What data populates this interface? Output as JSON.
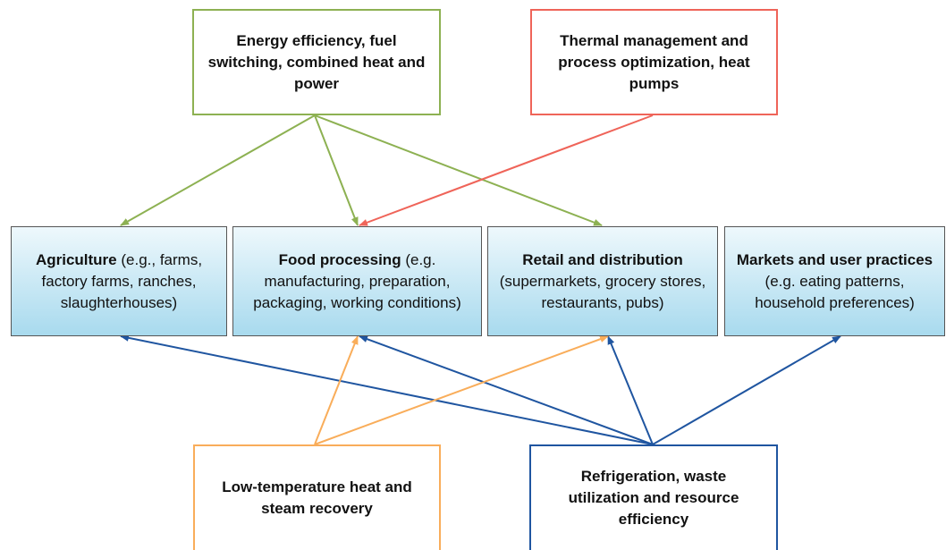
{
  "sources": [
    {
      "label": "Energy efficiency, fuel switching,  combined heat and power"
    },
    {
      "label": "Thermal management and process optimization, heat pumps"
    },
    {
      "label": "Low-temperature heat and steam recovery"
    },
    {
      "label": "Refrigeration, waste utilization and resource efficiency"
    }
  ],
  "stages": [
    {
      "title": "Agriculture",
      "detail": "(e.g., farms, factory farms, ranches, slaughterhouses)"
    },
    {
      "title": "Food processing",
      "detail": "(e.g. manufacturing, preparation, packaging, working conditions)"
    },
    {
      "title": "Retail and distribution",
      "detail": "(supermarkets, grocery stores, restaurants, pubs)"
    },
    {
      "title": "Markets and user practices",
      "detail": "(e.g. eating patterns, household preferences)"
    }
  ]
}
